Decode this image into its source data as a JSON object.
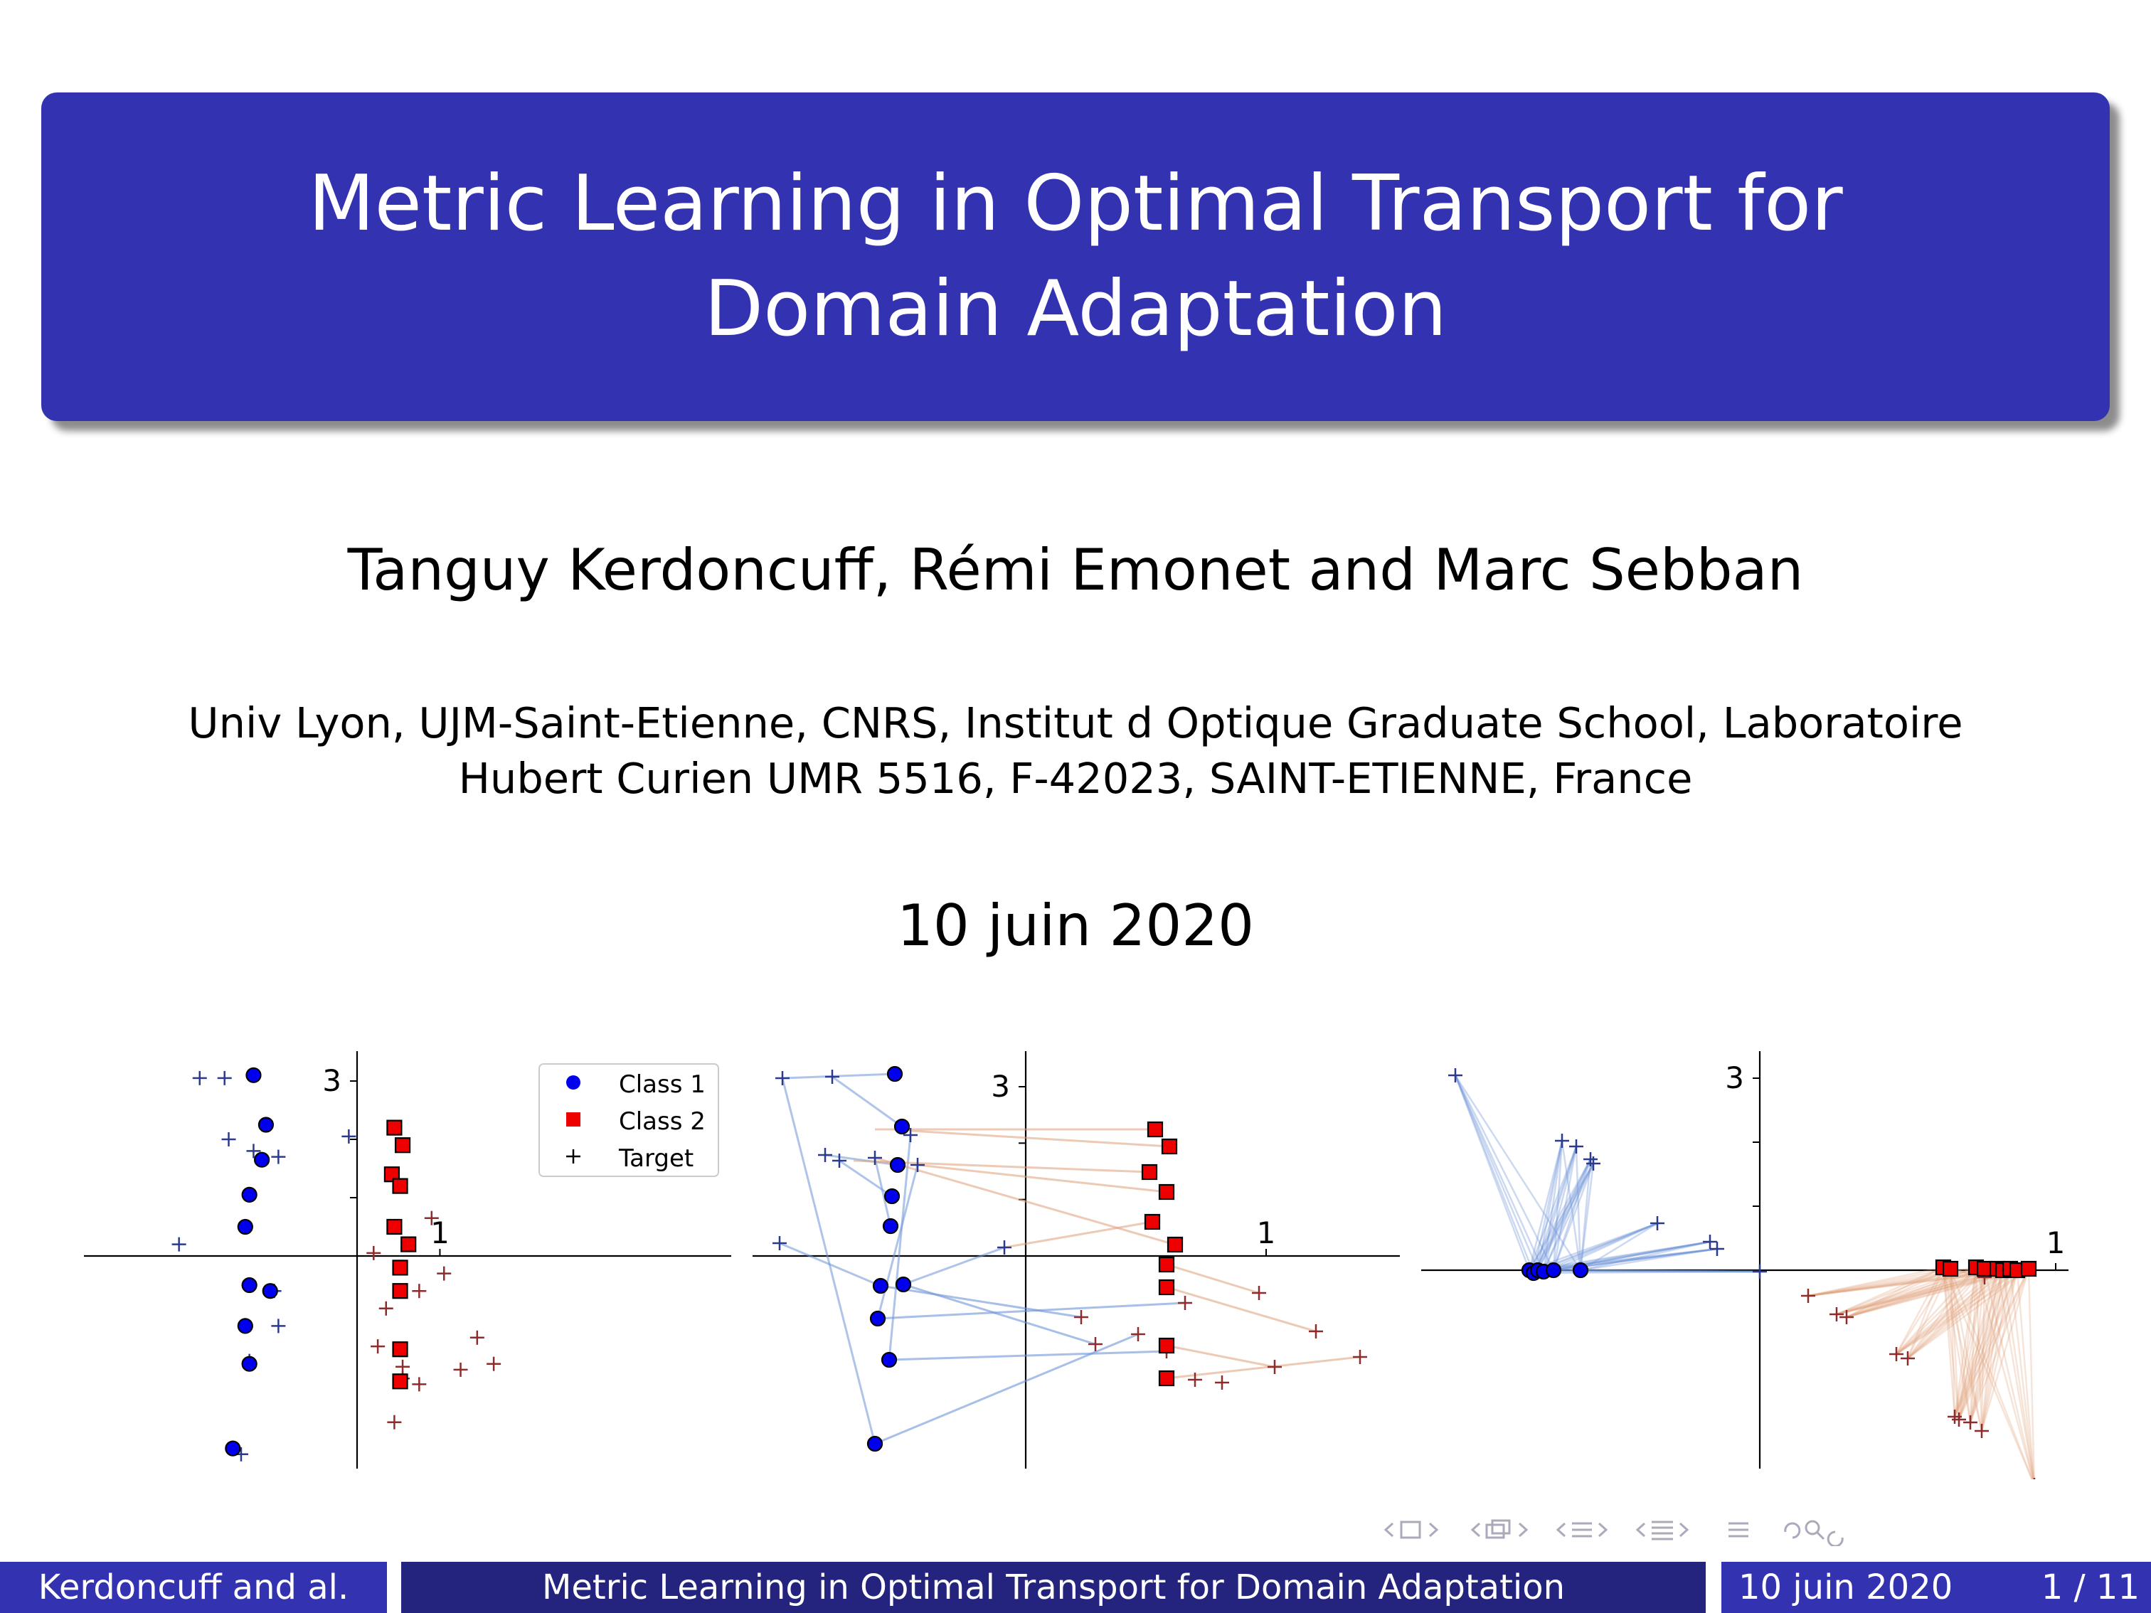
{
  "slide": {
    "title": "Metric Learning in Optimal Transport for Domain Adaptation",
    "authors": "Tanguy Kerdoncuff, Rémi Emonet and Marc Sebban",
    "affiliation_line1": "Univ Lyon, UJM-Saint-Etienne, CNRS, Institut d Optique Graduate School, Laboratoire",
    "affiliation_line2": "Hubert Curien UMR 5516, F-42023, SAINT-ETIENNE, France",
    "date": "10 juin 2020"
  },
  "footer": {
    "author": "Kerdoncuff and al.",
    "title": "Metric Learning in Optimal Transport for Domain Adaptation",
    "date": "10 juin 2020",
    "page": "1 / 11"
  },
  "colors": {
    "theme_blue": "#3333b2",
    "theme_dark_blue": "#24247f",
    "class1": "#0000ee",
    "class2": "#ee0000",
    "target_blue": "#2c3a8c",
    "target_red": "#8c2c2c",
    "link_blue": "#6f95d8",
    "link_orange": "#e0a07a"
  },
  "chart_data": [
    {
      "type": "scatter",
      "axis_labels": {
        "y_tick": "3",
        "x_tick": "1"
      },
      "legend": {
        "placement": "top-right",
        "entries": [
          "Class 1",
          "Class 2",
          "Target"
        ]
      },
      "series": [
        {
          "name": "Class 1",
          "marker": "circle",
          "points": [
            [
              -1.25,
              3.1
            ],
            [
              -1.1,
              2.25
            ],
            [
              -1.15,
              1.65
            ],
            [
              -1.3,
              1.05
            ],
            [
              -1.35,
              0.5
            ],
            [
              -1.3,
              -0.5
            ],
            [
              -1.35,
              -1.2
            ],
            [
              -1.05,
              -0.6
            ],
            [
              -1.3,
              -1.85
            ],
            [
              -1.5,
              -3.3
            ]
          ]
        },
        {
          "name": "Class 2",
          "marker": "square",
          "points": [
            [
              0.45,
              2.2
            ],
            [
              0.55,
              1.9
            ],
            [
              0.42,
              1.4
            ],
            [
              0.52,
              1.2
            ],
            [
              0.45,
              0.5
            ],
            [
              0.62,
              0.2
            ],
            [
              0.52,
              -0.2
            ],
            [
              0.52,
              -0.6
            ],
            [
              0.52,
              -1.6
            ],
            [
              0.52,
              -2.15
            ]
          ]
        },
        {
          "name": "Target",
          "marker": "plus",
          "points": [
            [
              -1.9,
              3.05
            ],
            [
              -1.6,
              3.05
            ],
            [
              -1.55,
              2.0
            ],
            [
              -1.25,
              1.8
            ],
            [
              -0.95,
              1.7
            ],
            [
              -1.0,
              -0.6
            ],
            [
              -0.95,
              -1.2
            ],
            [
              -1.3,
              -1.8
            ],
            [
              -1.4,
              -3.4
            ],
            [
              -2.15,
              0.2
            ],
            [
              0.2,
              0.05
            ],
            [
              0.55,
              -1.9
            ],
            [
              0.9,
              0.65
            ],
            [
              -0.1,
              2.05
            ],
            [
              0.75,
              -0.6
            ],
            [
              0.35,
              -0.9
            ],
            [
              0.25,
              -1.55
            ],
            [
              0.75,
              -2.2
            ],
            [
              0.55,
              -2.1
            ],
            [
              1.05,
              -0.3
            ],
            [
              1.45,
              -1.4
            ],
            [
              1.25,
              -1.95
            ],
            [
              1.65,
              -1.85
            ],
            [
              0.45,
              -2.85
            ]
          ]
        }
      ]
    },
    {
      "type": "scatter",
      "axis_labels": {
        "y_tick": "3",
        "x_tick": "1"
      },
      "annotations": "transport plan links between source and target points"
    },
    {
      "type": "scatter",
      "axis_labels": {
        "y_tick": "3",
        "x_tick": "1"
      },
      "annotations": "transport plan links after metric learning"
    }
  ]
}
